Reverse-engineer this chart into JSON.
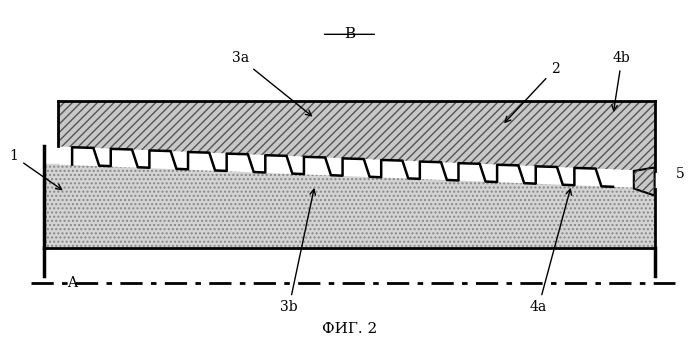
{
  "title": "ФИГ. 2",
  "label_B": "B",
  "label_A": "A",
  "label_1": "1",
  "label_2": "2",
  "label_3a": "3a",
  "label_3b": "3b",
  "label_4a": "4a",
  "label_4b": "4b",
  "label_5": "5",
  "bg_color": "#ffffff",
  "hatch_color_upper": "#aaaaaa",
  "dot_fill_lower": "#cccccc",
  "line_color": "#000000",
  "fig_width": 6.99,
  "fig_height": 3.56
}
